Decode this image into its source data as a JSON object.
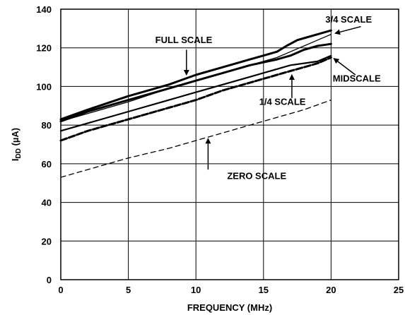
{
  "chart_data": {
    "type": "line",
    "title": "",
    "xlabel": "FREQUENCY (MHz)",
    "ylabel_main": "I",
    "ylabel_sub": "DD",
    "ylabel_unit": " (µA)",
    "xlim": [
      0,
      25
    ],
    "ylim": [
      0,
      140
    ],
    "xticks": [
      0,
      5,
      10,
      15,
      20,
      25
    ],
    "yticks": [
      0,
      20,
      40,
      60,
      80,
      100,
      120,
      140
    ],
    "grid": true,
    "series": [
      {
        "name": "FULL SCALE",
        "style": "thick",
        "x": [
          0,
          2,
          5,
          8,
          10,
          12,
          14,
          16,
          17,
          18,
          19,
          20
        ],
        "y": [
          82,
          87,
          93,
          99,
          103,
          107,
          111,
          114,
          116,
          119,
          121,
          122
        ]
      },
      {
        "name": "3/4 SCALE",
        "style": "thick",
        "x": [
          0,
          2,
          5,
          8,
          10,
          12,
          14,
          16,
          16.7,
          17.5,
          18,
          19,
          20
        ],
        "y": [
          83,
          88,
          95,
          101,
          106,
          110,
          114,
          118,
          121,
          124,
          125,
          127,
          129
        ]
      },
      {
        "name": "",
        "style": "thin",
        "x": [
          0,
          2,
          5,
          8,
          10,
          12,
          14,
          16,
          17,
          18,
          19,
          20
        ],
        "y": [
          82,
          86,
          92,
          99,
          103,
          107,
          111,
          115,
          118,
          121,
          124,
          127
        ]
      },
      {
        "name": "MIDSCALE",
        "style": "medium",
        "x": [
          0,
          2,
          5,
          8,
          10,
          12,
          14,
          16,
          17,
          18,
          19,
          20
        ],
        "y": [
          77,
          81,
          87,
          93,
          97,
          101,
          105,
          109,
          111,
          112,
          113,
          116
        ]
      },
      {
        "name": "1/4 SCALE",
        "style": "thick-dashed",
        "x": [
          0,
          2,
          5,
          8,
          10,
          12,
          14,
          16,
          17,
          18,
          19,
          20
        ],
        "y": [
          72,
          77,
          83,
          89,
          93,
          98,
          102,
          106,
          108,
          110,
          112,
          115
        ]
      },
      {
        "name": "ZERO SCALE",
        "style": "thin-dashed",
        "x": [
          0,
          2,
          5,
          8,
          10,
          12,
          14,
          16,
          18,
          20
        ],
        "y": [
          53,
          57,
          63,
          68,
          72,
          76,
          80,
          84,
          88,
          93
        ]
      }
    ],
    "annotations": [
      {
        "text": "FULL SCALE",
        "x": 9.1,
        "y": 122.5,
        "ax": 9.3,
        "ay": 119,
        "tx": 9.3,
        "ty": 106
      },
      {
        "text": "3/4 SCALE",
        "x": 21.3,
        "y": 133,
        "ax": 22.2,
        "ay": 131,
        "tx": 20.3,
        "ty": 127.5
      },
      {
        "text": "MIDSCALE",
        "x": 21.9,
        "y": 102.5,
        "ax": 21.8,
        "ay": 106,
        "tx": 20.2,
        "ty": 114.5
      },
      {
        "text": "1/4 SCALE",
        "x": 16.4,
        "y": 90.5,
        "ax": 17.1,
        "ay": 94,
        "tx": 17.1,
        "ty": 106
      },
      {
        "text": "ZERO SCALE",
        "x": 14.5,
        "y": 52,
        "ax": 10.9,
        "ay": 57,
        "tx": 10.9,
        "ty": 73
      }
    ]
  }
}
